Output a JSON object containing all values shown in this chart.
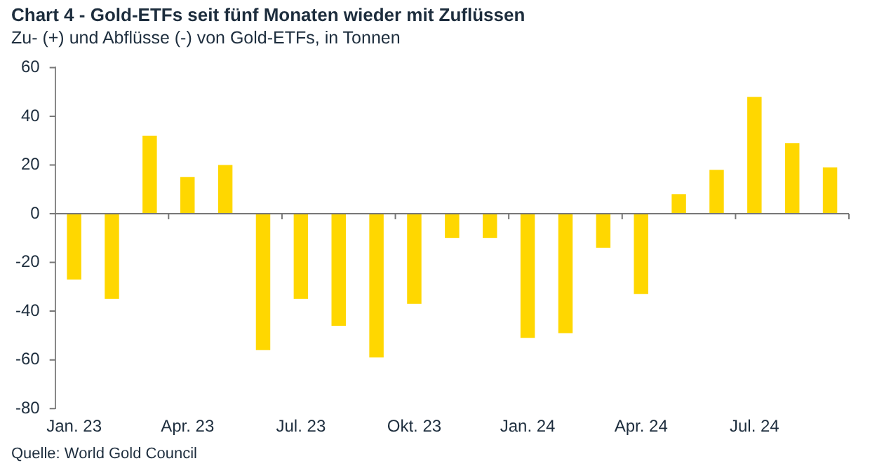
{
  "chart_data": {
    "type": "bar",
    "title": "Chart 4 - Gold-ETFs seit fünf Monaten wieder mit Zuflüssen",
    "subtitle": "Zu- (+) und Abflüsse (-) von Gold-ETFs, in Tonnen",
    "categories": [
      "Jan. 23",
      null,
      null,
      "Apr. 23",
      null,
      null,
      "Jul. 23",
      null,
      null,
      "Okt. 23",
      null,
      null,
      "Jan. 24",
      null,
      null,
      "Apr. 24",
      null,
      null,
      "Jul. 24",
      null,
      null
    ],
    "values": [
      -27,
      -35,
      32,
      15,
      20,
      -56,
      -35,
      -46,
      -59,
      -37,
      -10,
      -10,
      -51,
      -49,
      -14,
      -33,
      8,
      18,
      48,
      29,
      19
    ],
    "color": "#ffd700",
    "ylim": [
      -80,
      60
    ],
    "yticks": [
      -80,
      -60,
      -40,
      -20,
      0,
      20,
      40,
      60
    ],
    "legend": false,
    "annotations": [
      "Quelle: World Gold Council"
    ]
  }
}
